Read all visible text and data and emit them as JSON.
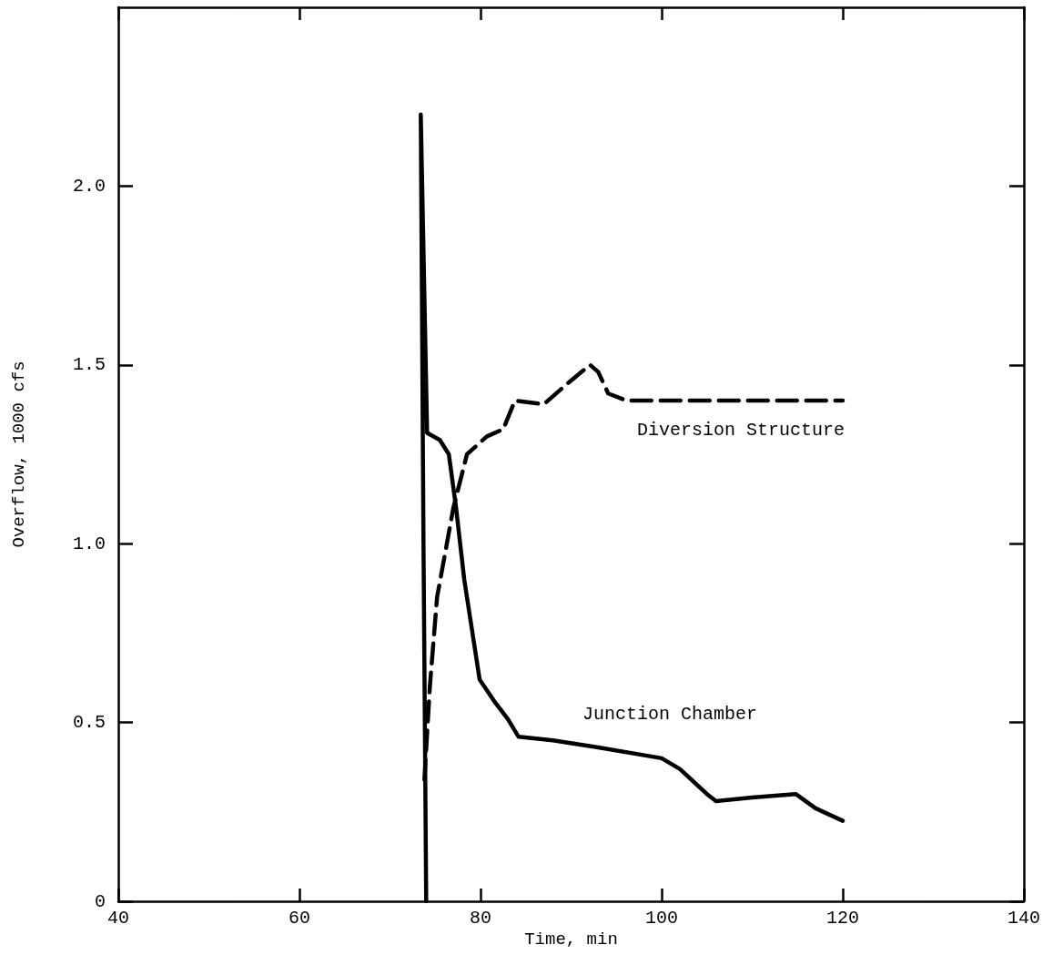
{
  "chart_data": {
    "type": "line",
    "xlabel": "Time, min",
    "ylabel": "Overflow, 1000 cfs",
    "xlim": [
      40,
      140
    ],
    "xticks": [
      40,
      60,
      80,
      100,
      120,
      140
    ],
    "ylim": [
      0,
      2.5
    ],
    "yticks": [
      0,
      0.5,
      {
        "value": 1,
        "label": "1.0"
      },
      1.5,
      {
        "value": 2,
        "label": "2.0"
      }
    ],
    "grid": false,
    "legend": false,
    "marker": "none",
    "series": [
      {
        "name": "Junction Chamber",
        "color": "#000000",
        "line_style": "solid",
        "x": [
          74.0,
          73.7,
          73.4,
          74.1,
          75.5,
          76.5,
          77.3,
          78.2,
          79.9,
          81.5,
          83.0,
          84.2,
          88,
          93,
          100,
          102,
          105,
          106,
          110,
          114.8,
          117,
          120
        ],
        "values": [
          0,
          1.0,
          2.2,
          1.31,
          1.29,
          1.25,
          1.1,
          0.9,
          0.62,
          0.56,
          0.51,
          0.46,
          0.45,
          0.43,
          0.4,
          0.37,
          0.3,
          0.28,
          0.29,
          0.3,
          0.26,
          0.225
        ]
      },
      {
        "name": "Diversion Structure",
        "color": "#000000",
        "line_style": "dashed",
        "x": [
          73.8,
          74.4,
          75.2,
          77,
          78.5,
          80.7,
          82.5,
          83.8,
          87,
          89.7,
          92.1,
          93,
          94.1,
          96.1,
          100,
          110,
          120
        ],
        "values": [
          0.34,
          0.6,
          0.85,
          1.1,
          1.25,
          1.3,
          1.32,
          1.4,
          1.39,
          1.45,
          1.5,
          1.48,
          1.42,
          1.4,
          1.4,
          1.4,
          1.4
        ]
      }
    ]
  }
}
